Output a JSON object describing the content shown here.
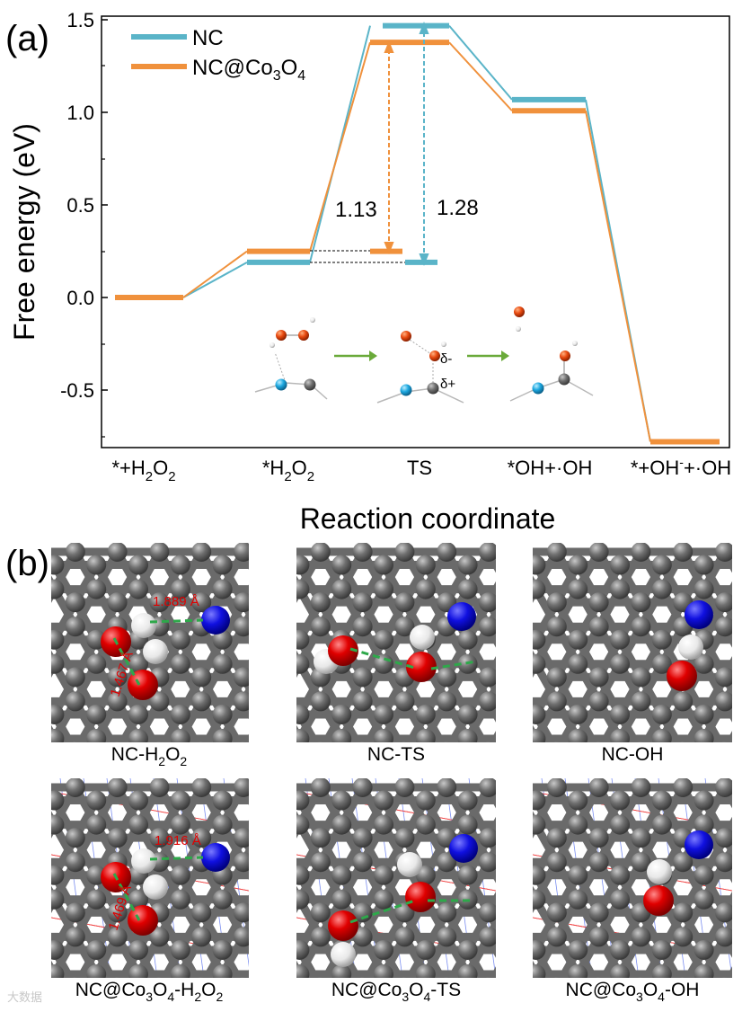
{
  "panel_a_label": "(a)",
  "panel_b_label": "(b)",
  "chart_data": {
    "type": "line",
    "xlabel": "Reaction coordinate",
    "ylabel": "Free energy (eV)",
    "ylim": [
      -0.78,
      1.5
    ],
    "yticks": [
      "1.5",
      "1.0",
      "0.5",
      "0.0",
      "-0.5"
    ],
    "categories": [
      "*+H2O2",
      "*H2O2",
      "TS",
      "*OH+·OH",
      "*+OH-+·OH"
    ],
    "series": [
      {
        "name": "NC",
        "color": "#5ab4c8",
        "values": [
          0.0,
          0.19,
          1.47,
          1.07,
          -0.78
        ]
      },
      {
        "name": "NC@Co3O4",
        "color": "#f0913c",
        "values": [
          0.0,
          0.25,
          1.38,
          1.01,
          -0.78
        ]
      }
    ],
    "annotations": [
      "1.13",
      "1.28"
    ],
    "legend_position": "top-left"
  },
  "inset": {
    "delta_minus": "δ-",
    "delta_plus": "δ+"
  },
  "panel_b": {
    "captions": [
      "NC-H2O2",
      "NC-TS",
      "NC-OH",
      "NC@Co3O4-H2O2",
      "NC@Co3O4-TS",
      "NC@Co3O4-OH"
    ],
    "distances": [
      "1.889 Å",
      "1.467 Å",
      "1.916 Å",
      "1.469 Å"
    ]
  },
  "watermark": "大数据"
}
